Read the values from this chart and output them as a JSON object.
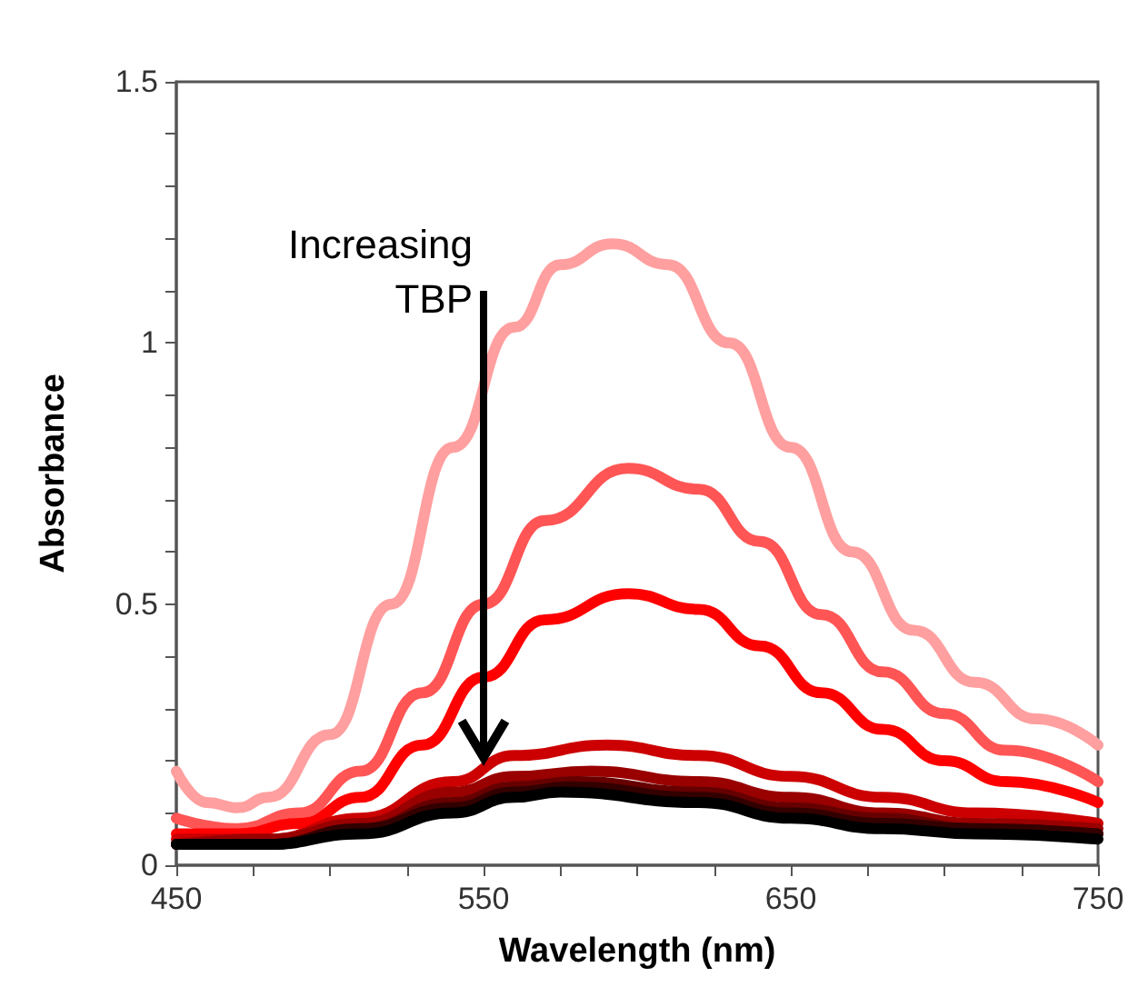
{
  "chart_data": {
    "type": "line",
    "xlabel": "Wavelength (nm)",
    "ylabel": "Absorbance",
    "annotations": [
      "Increasing TBP"
    ],
    "xlim": [
      450,
      750
    ],
    "ylim": [
      0,
      1.5
    ],
    "xticks": [
      450,
      {
        "value": 475,
        "label": null
      },
      {
        "value": 500,
        "label": null
      },
      {
        "value": 525,
        "label": null
      },
      550,
      {
        "value": 575,
        "label": null
      },
      {
        "value": 600,
        "label": null
      },
      {
        "value": 625,
        "label": null
      },
      650,
      {
        "value": 675,
        "label": null
      },
      {
        "value": 700,
        "label": null
      },
      {
        "value": 725,
        "label": null
      },
      750
    ],
    "yticks": [
      0,
      {
        "value": 0.1,
        "label": null
      },
      {
        "value": 0.2,
        "label": null
      },
      {
        "value": 0.3,
        "label": null
      },
      {
        "value": 0.4,
        "label": null
      },
      0.5,
      {
        "value": 0.6,
        "label": null
      },
      {
        "value": 0.7,
        "label": null
      },
      {
        "value": 0.8,
        "label": null
      },
      {
        "value": 0.9,
        "label": null
      },
      1,
      {
        "value": 1.1,
        "label": null
      },
      {
        "value": 1.2,
        "label": null
      },
      {
        "value": 1.3,
        "label": null
      },
      {
        "value": 1.4,
        "label": null
      },
      1.5
    ],
    "grid": false,
    "marker": "none",
    "line_style": "solid",
    "series": [
      {
        "color": "#ff9f9f",
        "x": [
          450,
          460,
          470,
          480,
          500,
          520,
          540,
          560,
          575,
          592,
          610,
          630,
          650,
          670,
          690,
          710,
          730,
          750
        ],
        "values": [
          0.18,
          0.12,
          0.11,
          0.13,
          0.25,
          0.5,
          0.8,
          1.03,
          1.15,
          1.19,
          1.15,
          1.0,
          0.8,
          0.6,
          0.45,
          0.35,
          0.28,
          0.23
        ]
      },
      {
        "color": "#ff5555",
        "x": [
          450,
          470,
          490,
          510,
          530,
          550,
          570,
          597,
          620,
          640,
          660,
          680,
          700,
          720,
          750
        ],
        "values": [
          0.09,
          0.07,
          0.1,
          0.18,
          0.33,
          0.5,
          0.66,
          0.76,
          0.72,
          0.62,
          0.48,
          0.37,
          0.29,
          0.22,
          0.16
        ]
      },
      {
        "color": "#ff0000",
        "x": [
          450,
          470,
          490,
          510,
          530,
          550,
          570,
          597,
          620,
          640,
          660,
          680,
          700,
          720,
          750
        ],
        "values": [
          0.06,
          0.06,
          0.08,
          0.13,
          0.23,
          0.36,
          0.47,
          0.52,
          0.49,
          0.42,
          0.33,
          0.26,
          0.2,
          0.16,
          0.12
        ]
      },
      {
        "color": "#cc0000",
        "x": [
          450,
          480,
          510,
          540,
          560,
          590,
          620,
          650,
          680,
          710,
          750
        ],
        "values": [
          0.05,
          0.05,
          0.09,
          0.16,
          0.21,
          0.23,
          0.21,
          0.17,
          0.13,
          0.1,
          0.08
        ]
      },
      {
        "color": "#990000",
        "x": [
          450,
          480,
          510,
          540,
          560,
          585,
          620,
          650,
          680,
          710,
          750
        ],
        "values": [
          0.04,
          0.05,
          0.08,
          0.14,
          0.17,
          0.18,
          0.16,
          0.13,
          0.1,
          0.08,
          0.07
        ]
      },
      {
        "color": "#660000",
        "x": [
          450,
          480,
          510,
          540,
          560,
          580,
          620,
          650,
          680,
          710,
          750
        ],
        "values": [
          0.04,
          0.04,
          0.07,
          0.12,
          0.15,
          0.16,
          0.14,
          0.11,
          0.09,
          0.07,
          0.06
        ]
      },
      {
        "color": "#330000",
        "x": [
          450,
          480,
          510,
          540,
          560,
          578,
          620,
          650,
          680,
          710,
          750
        ],
        "values": [
          0.04,
          0.04,
          0.07,
          0.11,
          0.14,
          0.15,
          0.13,
          0.1,
          0.08,
          0.07,
          0.06
        ]
      },
      {
        "color": "#000000",
        "x": [
          450,
          480,
          510,
          540,
          560,
          575,
          620,
          650,
          680,
          710,
          750
        ],
        "values": [
          0.04,
          0.04,
          0.06,
          0.1,
          0.13,
          0.14,
          0.12,
          0.09,
          0.07,
          0.06,
          0.05
        ]
      }
    ]
  }
}
